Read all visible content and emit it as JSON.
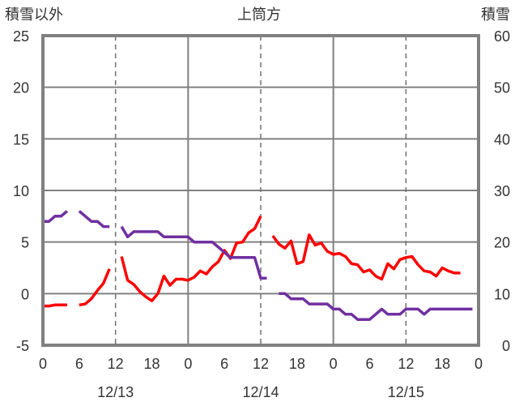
{
  "chart_data": {
    "type": "line",
    "title": "上筒方",
    "left_axis_label": "積雪以外",
    "right_axis_label": "積雪",
    "left_ylim": [
      -5,
      25
    ],
    "left_yticks": [
      "-5",
      "0",
      "5",
      "10",
      "15",
      "20",
      "25"
    ],
    "right_ylim": [
      0,
      60
    ],
    "right_yticks": [
      "0",
      "10",
      "20",
      "30",
      "40",
      "50",
      "60"
    ],
    "xlim": [
      0,
      72
    ],
    "xticks": [
      {
        "x": 0,
        "label": "0"
      },
      {
        "x": 6,
        "label": "6"
      },
      {
        "x": 12,
        "label": "12"
      },
      {
        "x": 18,
        "label": "18"
      },
      {
        "x": 24,
        "label": "0"
      },
      {
        "x": 30,
        "label": "6"
      },
      {
        "x": 36,
        "label": "12"
      },
      {
        "x": 42,
        "label": "18"
      },
      {
        "x": 48,
        "label": "0"
      },
      {
        "x": 54,
        "label": "6"
      },
      {
        "x": 60,
        "label": "12"
      },
      {
        "x": 66,
        "label": "18"
      },
      {
        "x": 72,
        "label": "0"
      }
    ],
    "date_labels": [
      {
        "x": 12,
        "label": "12/13"
      },
      {
        "x": 36,
        "label": "12/14"
      },
      {
        "x": 60,
        "label": "12/15"
      }
    ],
    "grid_solid_x": [
      24,
      48
    ],
    "grid_dashed_x": [
      12,
      36,
      60
    ],
    "grid_y": [
      0,
      5,
      10,
      15,
      20
    ],
    "series": [
      {
        "axis": "left",
        "color": "#ff0000",
        "segments": [
          [
            [
              0,
              -1.2
            ],
            [
              1,
              -1.2
            ],
            [
              2,
              -1.1
            ],
            [
              3,
              -1.1
            ],
            [
              4,
              -1.1
            ]
          ],
          [
            [
              6,
              -1.1
            ],
            [
              7,
              -1.0
            ],
            [
              8,
              -0.5
            ],
            [
              9,
              0.3
            ],
            [
              10,
              1.0
            ],
            [
              11,
              2.4
            ]
          ],
          [
            [
              13,
              3.6
            ],
            [
              14,
              1.3
            ],
            [
              15,
              0.9
            ],
            [
              16,
              0.2
            ],
            [
              17,
              -0.3
            ],
            [
              18,
              -0.7
            ],
            [
              19,
              0.0
            ],
            [
              20,
              1.7
            ],
            [
              21,
              0.8
            ],
            [
              22,
              1.4
            ],
            [
              23,
              1.4
            ],
            [
              24,
              1.3
            ],
            [
              25,
              1.6
            ],
            [
              26,
              2.2
            ],
            [
              27,
              1.9
            ],
            [
              28,
              2.6
            ],
            [
              29,
              3.1
            ],
            [
              30,
              4.2
            ],
            [
              31,
              3.4
            ],
            [
              32,
              4.9
            ],
            [
              33,
              5.0
            ],
            [
              34,
              5.9
            ],
            [
              35,
              6.3
            ],
            [
              36,
              7.5
            ]
          ],
          [
            [
              38,
              5.6
            ],
            [
              39,
              4.8
            ],
            [
              40,
              4.4
            ],
            [
              41,
              5.1
            ],
            [
              42,
              2.9
            ],
            [
              43,
              3.1
            ],
            [
              44,
              5.7
            ],
            [
              45,
              4.7
            ],
            [
              46,
              4.9
            ],
            [
              47,
              4.1
            ],
            [
              48,
              3.8
            ],
            [
              49,
              3.9
            ],
            [
              50,
              3.6
            ],
            [
              51,
              2.9
            ],
            [
              52,
              2.8
            ],
            [
              53,
              2.1
            ],
            [
              54,
              2.3
            ],
            [
              55,
              1.7
            ],
            [
              56,
              1.4
            ],
            [
              57,
              2.9
            ],
            [
              58,
              2.4
            ],
            [
              59,
              3.3
            ],
            [
              60,
              3.5
            ],
            [
              61,
              3.6
            ],
            [
              62,
              2.8
            ],
            [
              63,
              2.2
            ],
            [
              64,
              2.1
            ],
            [
              65,
              1.7
            ],
            [
              66,
              2.5
            ],
            [
              67,
              2.2
            ],
            [
              68,
              2.0
            ],
            [
              69,
              2.0
            ]
          ]
        ]
      },
      {
        "axis": "right",
        "color": "#7030a0",
        "segments": [
          [
            [
              0,
              24
            ],
            [
              1,
              24
            ],
            [
              2,
              25
            ],
            [
              3,
              25
            ],
            [
              4,
              26
            ]
          ],
          [
            [
              6,
              26
            ],
            [
              7,
              25
            ],
            [
              8,
              24
            ],
            [
              9,
              24
            ],
            [
              10,
              23
            ],
            [
              11,
              23
            ]
          ],
          [
            [
              13,
              23
            ],
            [
              14,
              21
            ],
            [
              15,
              22
            ],
            [
              16,
              22
            ],
            [
              17,
              22
            ],
            [
              18,
              22
            ],
            [
              19,
              22
            ],
            [
              20,
              21
            ],
            [
              21,
              21
            ],
            [
              22,
              21
            ],
            [
              23,
              21
            ],
            [
              24,
              21
            ],
            [
              25,
              20
            ],
            [
              26,
              20
            ],
            [
              27,
              20
            ],
            [
              28,
              20
            ],
            [
              29,
              19
            ],
            [
              30,
              18
            ],
            [
              31,
              17
            ],
            [
              32,
              17
            ],
            [
              33,
              17
            ],
            [
              34,
              17
            ],
            [
              35,
              17
            ],
            [
              36,
              13
            ],
            [
              37,
              13
            ]
          ],
          [
            [
              39,
              10
            ],
            [
              40,
              10
            ],
            [
              41,
              9
            ],
            [
              42,
              9
            ],
            [
              43,
              9
            ],
            [
              44,
              8
            ],
            [
              45,
              8
            ],
            [
              46,
              8
            ],
            [
              47,
              8
            ],
            [
              48,
              7
            ],
            [
              49,
              7
            ],
            [
              50,
              6
            ],
            [
              51,
              6
            ],
            [
              52,
              5
            ],
            [
              53,
              5
            ],
            [
              54,
              5
            ],
            [
              55,
              6
            ],
            [
              56,
              7
            ],
            [
              57,
              6
            ],
            [
              58,
              6
            ],
            [
              59,
              6
            ],
            [
              60,
              7
            ],
            [
              61,
              7
            ],
            [
              62,
              7
            ],
            [
              63,
              6
            ],
            [
              64,
              7
            ],
            [
              65,
              7
            ],
            [
              66,
              7
            ],
            [
              67,
              7
            ],
            [
              68,
              7
            ],
            [
              69,
              7
            ],
            [
              70,
              7
            ],
            [
              71,
              7
            ]
          ]
        ]
      }
    ]
  }
}
